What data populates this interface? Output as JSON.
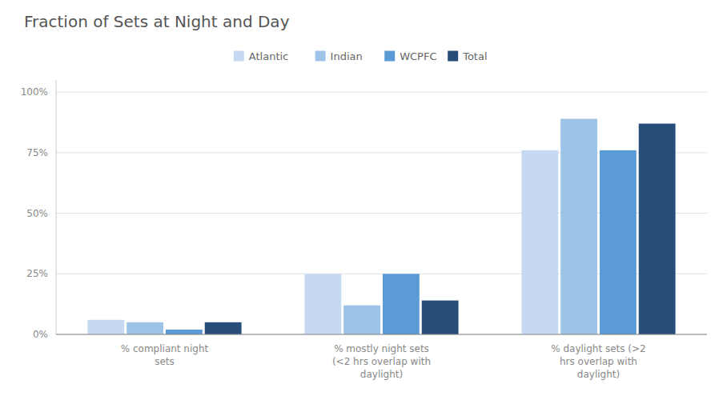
{
  "chart_data": {
    "type": "bar",
    "title": "Fraction of Sets at Night and Day",
    "categories": [
      "% compliant night\nsets",
      "% mostly night sets\n(<2 hrs overlap with\ndaylight)",
      "% daylight sets (>2\nhrs overlap with\ndaylight)"
    ],
    "series": [
      {
        "name": "Atlantic",
        "color": "#c5d9f1",
        "values": [
          0.06,
          0.25,
          0.76
        ]
      },
      {
        "name": "Indian",
        "color": "#9dc3e6",
        "values": [
          0.05,
          0.12,
          0.89
        ]
      },
      {
        "name": "WCPFC",
        "color": "#5b9bd5",
        "values": [
          0.02,
          0.25,
          0.76
        ]
      },
      {
        "name": "Total",
        "color": "#264e79",
        "values": [
          0.05,
          0.14,
          0.87
        ]
      }
    ],
    "ylim": [
      0,
      1.05
    ],
    "yticks": [
      {
        "value": 0,
        "label": "0%"
      },
      {
        "value": 0.25,
        "label": "25%"
      },
      {
        "value": 0.5,
        "label": "50%"
      },
      {
        "value": 0.75,
        "label": "75%"
      },
      {
        "value": 1.0,
        "label": "100%"
      }
    ],
    "grid": true,
    "legend": "top"
  }
}
